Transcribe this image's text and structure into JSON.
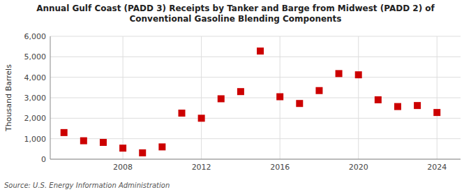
{
  "chart_data": {
    "type": "scatter",
    "title": "Annual Gulf Coast (PADD 3) Receipts by Tanker and Barge from Midwest (PADD 2) of\nConventional Gasoline Blending Components",
    "y_label": "Thousand Barrels",
    "source": "Source: U.S. Energy Information Administration",
    "x": [
      2005,
      2006,
      2007,
      2008,
      2009,
      2010,
      2011,
      2012,
      2013,
      2014,
      2015,
      2016,
      2017,
      2018,
      2019,
      2020,
      2021,
      2022,
      2023,
      2024
    ],
    "values": [
      1300,
      900,
      820,
      540,
      310,
      600,
      2250,
      2000,
      2950,
      3300,
      5280,
      3050,
      2720,
      3350,
      4180,
      4120,
      2900,
      2570,
      2620,
      2280
    ],
    "color": "#cc0000",
    "marker": "square",
    "grid": true,
    "xlim": [
      2004.3,
      2025.2
    ],
    "xticks": [
      2008,
      2012,
      2016,
      2020,
      2024
    ],
    "ylim": [
      0,
      6000
    ],
    "yticks": [
      0,
      {
        "value": 1000,
        "label": "1,000"
      },
      {
        "value": 2000,
        "label": "2,000"
      },
      {
        "value": 3000,
        "label": "3,000"
      },
      {
        "value": 4000,
        "label": "4,000"
      },
      {
        "value": 5000,
        "label": "5,000"
      },
      {
        "value": 6000,
        "label": "6,000"
      }
    ]
  }
}
